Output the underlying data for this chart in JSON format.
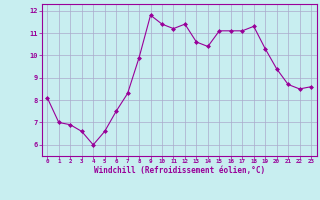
{
  "x": [
    0,
    1,
    2,
    3,
    4,
    5,
    6,
    7,
    8,
    9,
    10,
    11,
    12,
    13,
    14,
    15,
    16,
    17,
    18,
    19,
    20,
    21,
    22,
    23
  ],
  "y": [
    8.1,
    7.0,
    6.9,
    6.6,
    6.0,
    6.6,
    7.5,
    8.3,
    9.9,
    11.8,
    11.4,
    11.2,
    11.4,
    10.6,
    10.4,
    11.1,
    11.1,
    11.1,
    11.3,
    10.3,
    9.4,
    8.7,
    8.5,
    8.6
  ],
  "line_color": "#990099",
  "marker_color": "#990099",
  "bg_color": "#c8eef0",
  "grid_color": "#aaaacc",
  "xlabel": "Windchill (Refroidissement éolien,°C)",
  "xlabel_color": "#990099",
  "tick_color": "#990099",
  "ylabel_ticks": [
    6,
    7,
    8,
    9,
    10,
    11,
    12
  ],
  "xlim": [
    -0.5,
    23.5
  ],
  "ylim": [
    5.5,
    12.3
  ],
  "figwidth": 3.2,
  "figheight": 2.0,
  "dpi": 100
}
